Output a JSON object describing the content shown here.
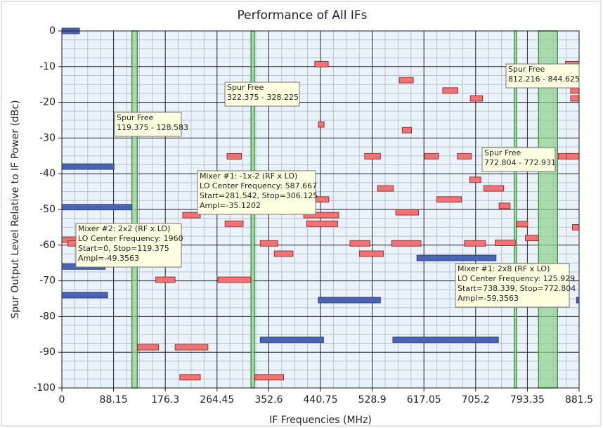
{
  "chart_data": {
    "type": "spur",
    "title": "Performance of All IFs",
    "xlabel": "IF Frequencies (MHz)",
    "ylabel": "Spur Output Level Relative to IF Power (dBc)",
    "xlim": [
      0,
      881.5
    ],
    "ylim": [
      -100,
      0
    ],
    "xticks": [
      0,
      88.15,
      176.3,
      264.45,
      352.6,
      440.75,
      528.9,
      617.05,
      705.2,
      793.35,
      881.5
    ],
    "yticks": [
      0,
      -10,
      -20,
      -30,
      -40,
      -50,
      -60,
      -70,
      -80,
      -90,
      -100
    ],
    "minor_divisions": 4,
    "grid": true,
    "series": [
      {
        "color": "#4a63b5",
        "start": [
          0,
          0,
          0,
          0,
          0,
          338,
          437,
          564,
          605,
          877
        ],
        "stop": [
          30,
          89,
          119.375,
          74,
          78,
          446,
          543,
          744,
          740,
          881.5
        ],
        "values": [
          0,
          -38,
          -49.3563,
          -66,
          -74,
          -86.5,
          -75.4,
          -86.5,
          -63.6,
          -75.4
        ]
      },
      {
        "color": "#f07272",
        "start": [
          0,
          10,
          431,
          437,
          281.542,
          206,
          278,
          266,
          160,
          129,
          193,
          201,
          329,
          338,
          362,
          430,
          412,
          417,
          491,
          507,
          516,
          538,
          569,
          562,
          575,
          580,
          618,
          649,
          639,
          674,
          695,
          686,
          719,
          696,
          745,
          738.339,
          775,
          790,
          846,
          860,
          858,
          867,
          867,
          870
        ],
        "stop": [
          35,
          50,
          454,
          447,
          306.125,
          236,
          309,
          322,
          193,
          165,
          249,
          236,
          378,
          368,
          394,
          455,
          472,
          470,
          525,
          548,
          543,
          565,
          608,
          612,
          599,
          596,
          642,
          675,
          681,
          698,
          714,
          722,
          753,
          717,
          764,
          772.804,
          794,
          812,
          870,
          881.5,
          881.5,
          881.5,
          881.5,
          881.5
        ],
        "values": [
          -58.5,
          -59.5,
          -9.3,
          -26.2,
          -35.1202,
          -51.6,
          -54,
          -69.7,
          -69.7,
          -88.6,
          -88.6,
          -97,
          -97,
          -59.5,
          -62.4,
          -47.2,
          -51.6,
          -54,
          -59.5,
          -62.4,
          -35.1,
          -44.1,
          -50.8,
          -59.5,
          -13.8,
          -27.8,
          -35.1,
          -16.7,
          -47.2,
          -35.1,
          -41.7,
          -59.5,
          -44.1,
          -18.9,
          -49,
          -59.3563,
          -54.1,
          -58,
          -35.1,
          -35.1,
          -9.3,
          -16.7,
          -18.9,
          -55
        ]
      }
    ],
    "bands": {
      "color": "#8fd08f",
      "start": [
        119.375,
        322.375,
        772.804,
        812.216
      ],
      "stop": [
        128.583,
        328.225,
        772.931,
        844.625
      ]
    },
    "annotations": [
      {
        "lines": [
          "Spur Free",
          "119.375 - 128.583"
        ]
      },
      {
        "lines": [
          "Spur Free",
          "322.375 - 328.225"
        ]
      },
      {
        "lines": [
          "Spur Free",
          "812.216 - 844.625"
        ]
      },
      {
        "lines": [
          "Spur Free",
          "772.804 - 772.931"
        ]
      },
      {
        "lines": [
          "Mixer #1: -1x-2 (RF x LO)",
          "LO Center Frequency: 587.667",
          "Start=281.542, Stop=306.125",
          "Ampl=-35.1202"
        ]
      },
      {
        "lines": [
          "Mixer #2: 2x2 (RF x LO)",
          "LO Center Frequency: 1960",
          "Start=0, Stop=119.375",
          "Ampl=-49.3563"
        ]
      },
      {
        "lines": [
          "Mixer #1: 2x8 (RF x LO)",
          "LO Center Frequency: 125.929",
          "Start=738.339, Stop=772.804",
          "Ampl=-59.3563"
        ]
      }
    ]
  }
}
